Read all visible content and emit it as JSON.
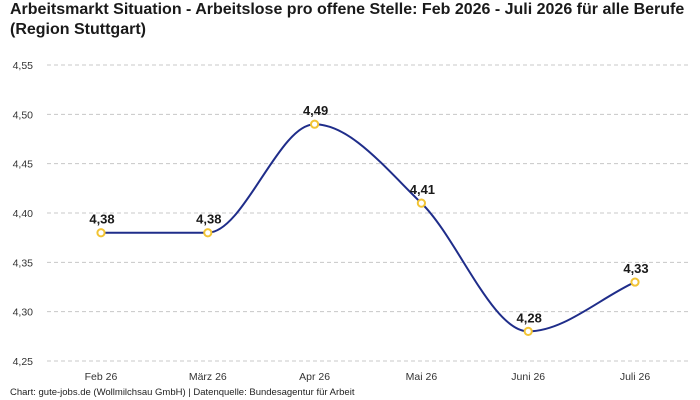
{
  "title": "Arbeitsmarkt Situation - Arbeitslose pro offene Stelle: Feb 2026 - Juli 2026 für alle Berufe (Region Stuttgart)",
  "footer": "Chart: gute-jobs.de (Wollmilchsau GmbH) | Datenquelle: Bundesagentur für Arbeit",
  "chart_data": {
    "type": "line",
    "title": "Arbeitsmarkt Situation - Arbeitslose pro offene Stelle: Feb 2026 - Juli 2026 für alle Berufe (Region Stuttgart)",
    "xlabel": "",
    "ylabel": "",
    "categories": [
      "Feb 26",
      "März 26",
      "Apr 26",
      "Mai 26",
      "Juni 26",
      "Juli 26"
    ],
    "values": [
      4.38,
      4.38,
      4.49,
      4.41,
      4.28,
      4.33
    ],
    "value_labels": [
      "4,38",
      "4,38",
      "4,49",
      "4,41",
      "4,28",
      "4,33"
    ],
    "y_ticks": [
      "4,25",
      "4,30",
      "4,35",
      "4,40",
      "4,45",
      "4,50",
      "4,55"
    ],
    "ylim": [
      4.25,
      4.55
    ],
    "grid": true,
    "line_color": "#1f2d8a",
    "marker_color": "#f2c434"
  }
}
